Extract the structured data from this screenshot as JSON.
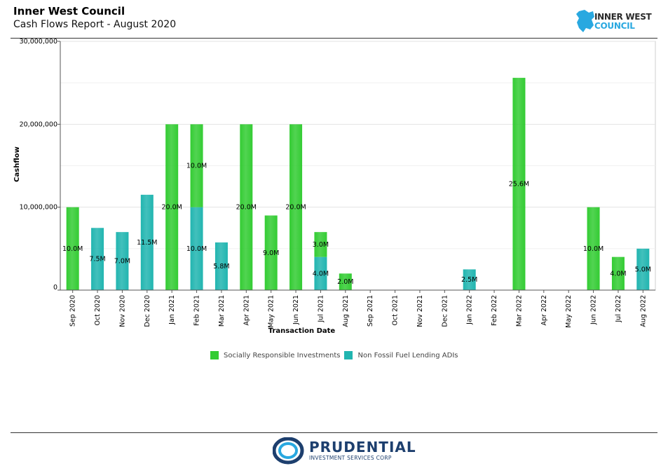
{
  "header": {
    "title": "Inner West Council",
    "subtitle": "Cash Flows Report - August 2020"
  },
  "logos": {
    "council_line1": "INNER WEST",
    "council_line2": "COUNCIL",
    "footer_name": "PRUDENTIAL",
    "footer_sub": "INVESTMENT SERVICES CORP"
  },
  "colors": {
    "green": "#33cc33",
    "teal": "#21b5b0",
    "brand_blue": "#1d3f6e",
    "council_blue": "#29a8e0"
  },
  "chart_data": {
    "type": "bar",
    "stacked": true,
    "xlabel": "Transaction Date",
    "ylabel": "Cashflow",
    "ylim": [
      0,
      30000000
    ],
    "yticks": [
      0,
      10000000,
      20000000,
      30000000
    ],
    "ytick_labels": [
      "0",
      "10,000,000",
      "20,000,000",
      "30,000,000"
    ],
    "grid": true,
    "legend_position": "bottom",
    "categories": [
      "Sep 2020",
      "Oct 2020",
      "Nov 2020",
      "Dec 2020",
      "Jan 2021",
      "Feb 2021",
      "Mar 2021",
      "Apr 2021",
      "May 2021",
      "Jun 2021",
      "Jul 2021",
      "Aug 2021",
      "Sep 2021",
      "Oct 2021",
      "Nov 2021",
      "Dec 2021",
      "Jan 2022",
      "Feb 2022",
      "Mar 2022",
      "Apr 2022",
      "May 2022",
      "Jun 2022",
      "Jul 2022",
      "Aug 2022"
    ],
    "series": [
      {
        "name": "Non Fossil Fuel Lending ADIs",
        "color": "#21b5b0",
        "values": [
          0,
          7500000,
          7000000,
          11500000,
          0,
          10000000,
          5750000,
          0,
          0,
          0,
          4000000,
          0,
          0,
          0,
          0,
          0,
          2500000,
          0,
          0,
          0,
          0,
          0,
          0,
          5000000
        ],
        "labels": [
          "",
          "7.5M",
          "7.0M",
          "11.5M",
          "",
          "10.0M",
          "5.8M",
          "",
          "",
          "",
          "4.0M",
          "",
          "",
          "",
          "",
          "",
          "2.5M",
          "",
          "",
          "",
          "",
          "",
          "",
          "5.0M"
        ]
      },
      {
        "name": "Socially Responsible Investments",
        "color": "#33cc33",
        "values": [
          10000000,
          0,
          0,
          0,
          20000000,
          10000000,
          0,
          20000000,
          9000000,
          20000000,
          3000000,
          2000000,
          0,
          0,
          0,
          0,
          0,
          0,
          25600000,
          0,
          0,
          10000000,
          4000000,
          0
        ],
        "labels": [
          "10.0M",
          "",
          "",
          "",
          "20.0M",
          "10.0M",
          "",
          "20.0M",
          "9.0M",
          "20.0M",
          "3.0M",
          "2.0M",
          "",
          "",
          "",
          "",
          "",
          "",
          "25.6M",
          "",
          "",
          "10.0M",
          "4.0M",
          ""
        ]
      }
    ],
    "legend_order": [
      "Socially Responsible Investments",
      "Non Fossil Fuel Lending ADIs"
    ]
  }
}
